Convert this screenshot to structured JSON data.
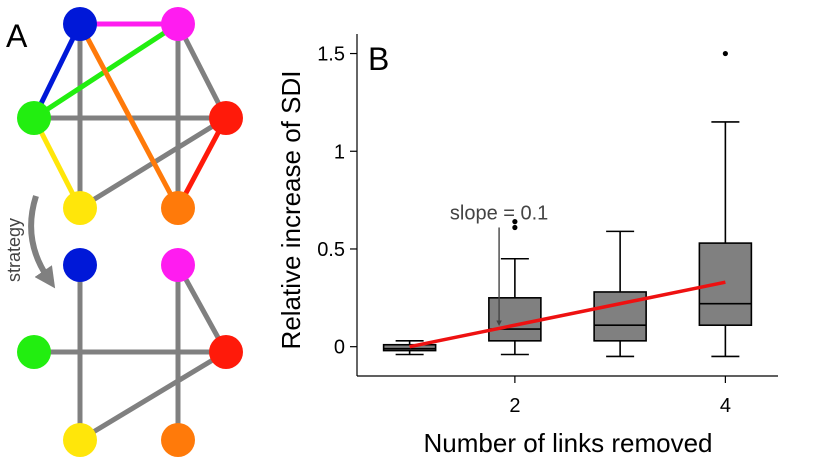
{
  "panel_a": {
    "label": "A",
    "arrow_label": "strategy",
    "node_colors": {
      "top_left": "#0018d8",
      "top_right": "#ff1cf0",
      "mid_left": "#22ee10",
      "mid_right": "#ff1a0a",
      "bottom_left": "#ffe60a",
      "bottom_right": "#ff7a0a"
    },
    "edge_colors": {
      "gray": "#808080",
      "magenta": "#ff1cf0",
      "blue": "#0018d8",
      "green": "#22ee10",
      "orange": "#ff7a0a",
      "yellow": "#ffe60a",
      "red": "#ff1a0a"
    }
  },
  "chart_data": {
    "type": "boxplot",
    "panel_label": "B",
    "xlabel": "Number of links removed",
    "ylabel": "Relative increase of SDI",
    "xlim": [
      0.5,
      4.5
    ],
    "ylim": [
      -0.15,
      1.6
    ],
    "xticks": [
      2,
      4
    ],
    "yticks": [
      0,
      0.5,
      1,
      1.5
    ],
    "ytick_labels": [
      "0",
      "0.5",
      "1",
      "1.5"
    ],
    "box_color": "#808080",
    "boxes": [
      {
        "x": 1,
        "whisker_low": -0.04,
        "q1": -0.02,
        "median": -0.01,
        "q3": 0.01,
        "whisker_high": 0.03,
        "outliers": []
      },
      {
        "x": 2,
        "whisker_low": -0.04,
        "q1": 0.03,
        "median": 0.09,
        "q3": 0.25,
        "whisker_high": 0.45,
        "outliers": [
          0.61,
          0.64
        ]
      },
      {
        "x": 3,
        "whisker_low": -0.05,
        "q1": 0.03,
        "median": 0.11,
        "q3": 0.28,
        "whisker_high": 0.59,
        "outliers": []
      },
      {
        "x": 4,
        "whisker_low": -0.05,
        "q1": 0.11,
        "median": 0.22,
        "q3": 0.53,
        "whisker_high": 1.15,
        "outliers": [
          1.5
        ]
      }
    ],
    "fit_line": {
      "x": [
        1,
        4
      ],
      "y": [
        0.0,
        0.33
      ],
      "color": "#ee1111"
    },
    "annotation": {
      "text": "slope = 0.1",
      "arrow_from": [
        1.85,
        0.61
      ],
      "arrow_to": [
        1.85,
        0.12
      ]
    },
    "grid": false
  }
}
